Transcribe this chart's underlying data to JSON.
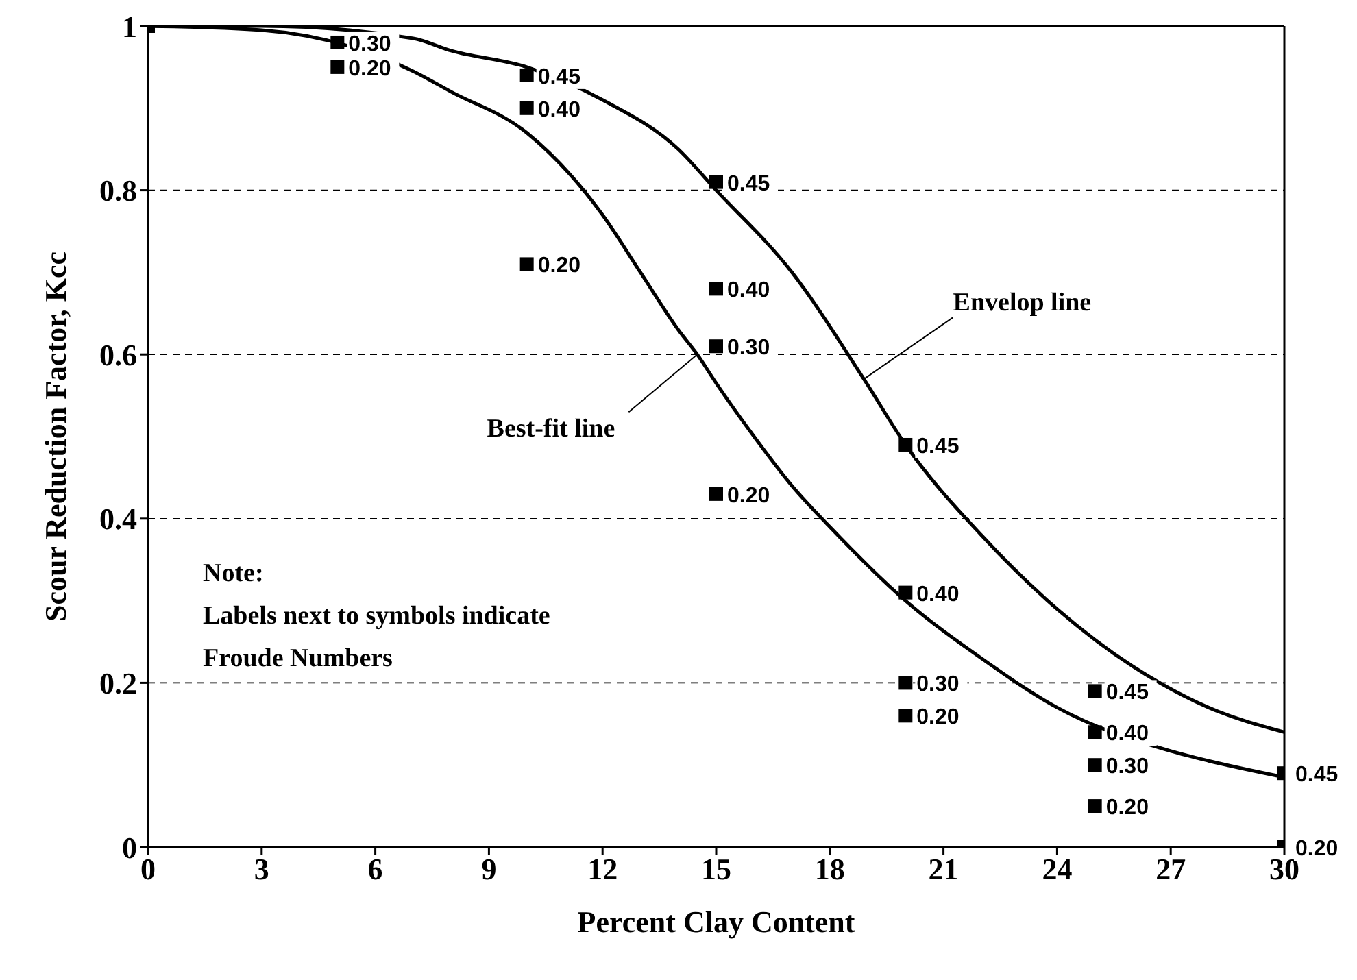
{
  "chart_data": {
    "type": "scatter",
    "xlabel": "Percent Clay Content",
    "ylabel": "Scour Reduction Factor, Kcc",
    "xlim": [
      0,
      30
    ],
    "xticks": [
      0,
      3,
      6,
      9,
      12,
      15,
      18,
      21,
      24,
      27,
      30
    ],
    "ylim": [
      0,
      1
    ],
    "yticks": [
      0,
      0.2,
      0.4,
      0.6,
      0.8,
      1
    ],
    "grid": "y",
    "series": [
      {
        "type": "line",
        "color": "#000000",
        "x": [
          0,
          3,
          7,
          8,
          10,
          12,
          14,
          15,
          17,
          18.9,
          20,
          22,
          24,
          26,
          28,
          30
        ],
        "values": [
          1,
          1,
          0.985,
          0.97,
          0.95,
          0.91,
          0.85,
          0.8,
          0.7,
          0.57,
          0.49,
          0.38,
          0.29,
          0.22,
          0.17,
          0.14
        ]
      },
      {
        "type": "line",
        "color": "#000000",
        "x": [
          0,
          3,
          7,
          8,
          10,
          12,
          13,
          14,
          14.5,
          15,
          16,
          17,
          18,
          20,
          22,
          24,
          27,
          28,
          30
        ],
        "values": [
          1,
          0.995,
          0.945,
          0.92,
          0.87,
          0.77,
          0.7,
          0.63,
          0.6,
          0.565,
          0.5,
          0.44,
          0.39,
          0.3,
          0.23,
          0.17,
          0.117,
          0.105,
          0.085
        ]
      },
      {
        "color": "#000000",
        "marker": "square",
        "x": [
          0
        ],
        "values": [
          1
        ]
      },
      {
        "name": "0.45",
        "color": "#000000",
        "marker": "square",
        "x": [
          10,
          15,
          20,
          25,
          30
        ],
        "values": [
          0.94,
          0.81,
          0.49,
          0.19,
          0.09
        ]
      },
      {
        "name": "0.40",
        "color": "#000000",
        "marker": "square",
        "x": [
          10,
          15,
          20,
          25
        ],
        "values": [
          0.9,
          0.68,
          0.31,
          0.14
        ]
      },
      {
        "name": "0.30",
        "color": "#000000",
        "marker": "square",
        "x": [
          5,
          15,
          20,
          25
        ],
        "values": [
          0.98,
          0.61,
          0.2,
          0.1
        ]
      },
      {
        "name": "0.20",
        "color": "#000000",
        "marker": "square",
        "x": [
          5,
          10,
          15,
          20,
          25,
          30
        ],
        "values": [
          0.95,
          0.71,
          0.43,
          0.16,
          0.05,
          0
        ]
      }
    ],
    "annotations": [
      {
        "text": "Envelop line",
        "x": 18.9,
        "y": 0.57
      },
      {
        "text": "Best-fit line",
        "x": 14.5,
        "y": 0.6
      },
      "Note:\nLabels next to symbols indicate\nFroude Numbers"
    ]
  }
}
